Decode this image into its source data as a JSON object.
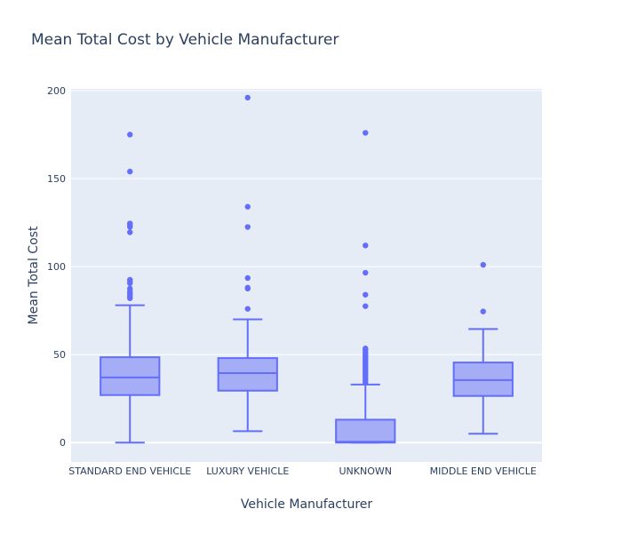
{
  "chart_data": {
    "type": "box",
    "title": "Mean Total Cost by Vehicle Manufacturer",
    "xlabel": "Vehicle Manufacturer",
    "ylabel": "Mean Total Cost",
    "ylim": [
      -11,
      201
    ],
    "yticks": [
      0,
      50,
      100,
      150,
      200
    ],
    "grid": true,
    "legend": "none",
    "colors": {
      "box_fill": "#a6adf7",
      "box_line": "#636efa",
      "plot_bg": "#e5ecf6",
      "grid": "#ffffff",
      "text": "#2a3f5f"
    },
    "categories": [
      "STANDARD END VEHICLE",
      "LUXURY VEHICLE",
      "UNKNOWN",
      "MIDDLE END VEHICLE"
    ],
    "boxes": [
      {
        "category": "STANDARD END VEHICLE",
        "min": 0,
        "q1": 27,
        "median": 37,
        "q3": 48.5,
        "max": 78,
        "outliers": [
          175,
          154,
          124.5,
          123.5,
          122.5,
          119.5,
          92.5,
          91.5,
          90.5,
          87.5,
          86,
          85,
          84,
          83,
          82
        ]
      },
      {
        "category": "LUXURY VEHICLE",
        "min": 6.5,
        "q1": 29.5,
        "median": 39.5,
        "q3": 48,
        "max": 70,
        "outliers": [
          196,
          134,
          122.5,
          93.5,
          88,
          87.5,
          76
        ]
      },
      {
        "category": "UNKNOWN",
        "min": 0,
        "q1": 0,
        "median": 0.5,
        "q3": 13,
        "max": 33,
        "outliers": [
          176,
          112,
          96.5,
          84,
          77.5,
          53.5,
          52.5,
          51,
          50,
          49,
          48,
          47,
          46,
          45,
          44,
          43,
          42,
          41,
          40,
          39,
          38,
          37,
          36,
          35,
          34
        ]
      },
      {
        "category": "MIDDLE END VEHICLE",
        "min": 5,
        "q1": 26.5,
        "median": 35.5,
        "q3": 45.5,
        "max": 64.5,
        "outliers": [
          101,
          74.5
        ]
      }
    ]
  }
}
